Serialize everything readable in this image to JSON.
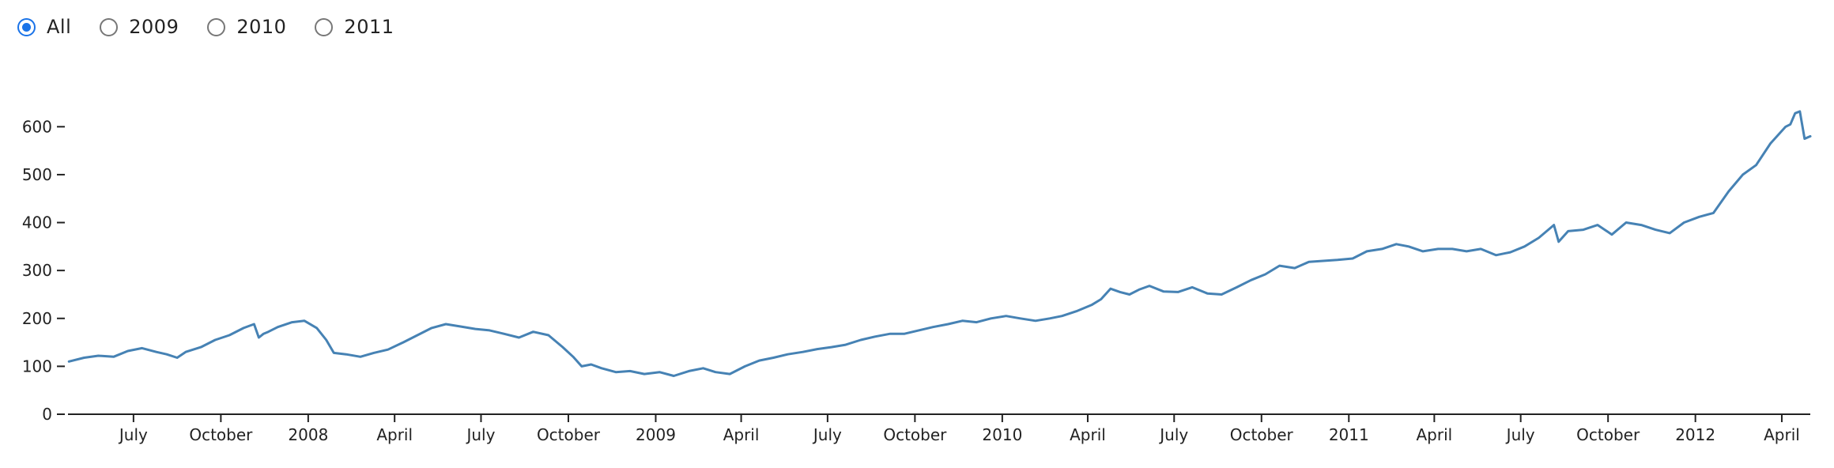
{
  "filter": {
    "options": [
      "All",
      "2009",
      "2010",
      "2011"
    ],
    "selected": "All"
  },
  "chart_data": {
    "type": "line",
    "title": "",
    "xlabel": "",
    "ylabel": "",
    "line_color": "#4682b4",
    "ylim": [
      0,
      650
    ],
    "xlim": [
      "2007-04-23",
      "2012-05-01"
    ],
    "y_ticks": [
      0,
      100,
      200,
      300,
      400,
      500,
      600
    ],
    "x_ticks": [
      {
        "date": "2007-07-01",
        "label": "July"
      },
      {
        "date": "2007-10-01",
        "label": "October"
      },
      {
        "date": "2008-01-01",
        "label": "2008"
      },
      {
        "date": "2008-04-01",
        "label": "April"
      },
      {
        "date": "2008-07-01",
        "label": "July"
      },
      {
        "date": "2008-10-01",
        "label": "October"
      },
      {
        "date": "2009-01-01",
        "label": "2009"
      },
      {
        "date": "2009-04-01",
        "label": "April"
      },
      {
        "date": "2009-07-01",
        "label": "July"
      },
      {
        "date": "2009-10-01",
        "label": "October"
      },
      {
        "date": "2010-01-01",
        "label": "2010"
      },
      {
        "date": "2010-04-01",
        "label": "April"
      },
      {
        "date": "2010-07-01",
        "label": "July"
      },
      {
        "date": "2010-10-01",
        "label": "October"
      },
      {
        "date": "2011-01-01",
        "label": "2011"
      },
      {
        "date": "2011-04-01",
        "label": "April"
      },
      {
        "date": "2011-07-01",
        "label": "July"
      },
      {
        "date": "2011-10-01",
        "label": "October"
      },
      {
        "date": "2012-01-01",
        "label": "2012"
      },
      {
        "date": "2012-04-01",
        "label": "April"
      }
    ],
    "series": [
      {
        "x": [
          "2007-04-24",
          "2007-05-10",
          "2007-05-25",
          "2007-06-10",
          "2007-06-25",
          "2007-07-10",
          "2007-07-25",
          "2007-08-05",
          "2007-08-16",
          "2007-08-25",
          "2007-09-10",
          "2007-09-25",
          "2007-10-10",
          "2007-10-25",
          "2007-11-05",
          "2007-11-10",
          "2007-11-15",
          "2007-11-20",
          "2007-11-30",
          "2007-12-15",
          "2007-12-28",
          "2008-01-10",
          "2008-01-20",
          "2008-01-28",
          "2008-02-10",
          "2008-02-25",
          "2008-03-10",
          "2008-03-25",
          "2008-04-10",
          "2008-04-25",
          "2008-05-10",
          "2008-05-25",
          "2008-06-10",
          "2008-06-25",
          "2008-07-10",
          "2008-07-25",
          "2008-08-10",
          "2008-08-25",
          "2008-09-10",
          "2008-09-25",
          "2008-10-06",
          "2008-10-15",
          "2008-10-25",
          "2008-11-05",
          "2008-11-20",
          "2008-12-05",
          "2008-12-20",
          "2009-01-05",
          "2009-01-20",
          "2009-02-05",
          "2009-02-20",
          "2009-03-05",
          "2009-03-20",
          "2009-04-05",
          "2009-04-20",
          "2009-05-05",
          "2009-05-20",
          "2009-06-05",
          "2009-06-20",
          "2009-07-05",
          "2009-07-20",
          "2009-08-05",
          "2009-08-20",
          "2009-09-05",
          "2009-09-20",
          "2009-10-05",
          "2009-10-20",
          "2009-11-05",
          "2009-11-20",
          "2009-12-05",
          "2009-12-20",
          "2010-01-05",
          "2010-01-20",
          "2010-02-05",
          "2010-02-20",
          "2010-03-05",
          "2010-03-20",
          "2010-04-05",
          "2010-04-15",
          "2010-04-25",
          "2010-05-05",
          "2010-05-15",
          "2010-05-25",
          "2010-06-05",
          "2010-06-20",
          "2010-07-05",
          "2010-07-20",
          "2010-08-05",
          "2010-08-20",
          "2010-09-05",
          "2010-09-20",
          "2010-10-05",
          "2010-10-20",
          "2010-11-05",
          "2010-11-20",
          "2010-12-05",
          "2010-12-20",
          "2011-01-05",
          "2011-01-20",
          "2011-02-05",
          "2011-02-20",
          "2011-03-05",
          "2011-03-20",
          "2011-04-05",
          "2011-04-20",
          "2011-05-05",
          "2011-05-20",
          "2011-06-05",
          "2011-06-20",
          "2011-07-05",
          "2011-07-20",
          "2011-08-05",
          "2011-08-10",
          "2011-08-20",
          "2011-09-05",
          "2011-09-20",
          "2011-10-05",
          "2011-10-20",
          "2011-11-05",
          "2011-11-20",
          "2011-12-05",
          "2011-12-20",
          "2012-01-05",
          "2012-01-20",
          "2012-02-05",
          "2012-02-20",
          "2012-03-05",
          "2012-03-20",
          "2012-04-05",
          "2012-04-10",
          "2012-04-15",
          "2012-04-20",
          "2012-04-25",
          "2012-05-01"
        ],
        "y": [
          110,
          118,
          122,
          120,
          132,
          138,
          130,
          125,
          118,
          130,
          140,
          155,
          165,
          180,
          188,
          160,
          168,
          172,
          182,
          192,
          195,
          180,
          155,
          128,
          125,
          120,
          128,
          135,
          150,
          165,
          180,
          188,
          183,
          178,
          175,
          168,
          160,
          172,
          165,
          140,
          120,
          100,
          104,
          96,
          88,
          90,
          84,
          88,
          80,
          90,
          96,
          88,
          84,
          100,
          112,
          118,
          125,
          130,
          136,
          140,
          145,
          155,
          162,
          168,
          168,
          175,
          182,
          188,
          195,
          192,
          200,
          205,
          200,
          195,
          200,
          205,
          215,
          228,
          240,
          262,
          255,
          250,
          260,
          268,
          256,
          255,
          265,
          252,
          250,
          265,
          280,
          292,
          310,
          305,
          318,
          320,
          322,
          325,
          340,
          345,
          355,
          350,
          340,
          345,
          345,
          340,
          345,
          332,
          338,
          350,
          368,
          395,
          360,
          382,
          385,
          395,
          375,
          400,
          395,
          385,
          378,
          400,
          412,
          420,
          465,
          500,
          520,
          565,
          600,
          605,
          628,
          632,
          575,
          580
        ]
      }
    ]
  }
}
